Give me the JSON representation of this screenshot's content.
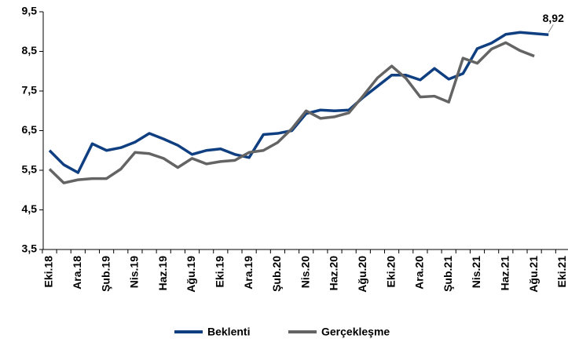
{
  "chart_data": {
    "type": "line",
    "categories": [
      "Eki.18",
      null,
      "Ara.18",
      null,
      "Şub.19",
      null,
      "Nis.19",
      null,
      "Haz.19",
      null,
      "Ağu.19",
      null,
      "Eki.19",
      null,
      "Ara.19",
      null,
      "Şub.20",
      null,
      "Nis.20",
      null,
      "Haz.20",
      null,
      "Ağu.20",
      null,
      "Eki.20",
      null,
      "Ara.20",
      null,
      "Şub.21",
      null,
      "Nis.21",
      null,
      "Haz.21",
      null,
      "Ağu.21",
      null,
      "Eki.21"
    ],
    "series": [
      {
        "name": "Beklenti",
        "color": "#0f3f80",
        "values": [
          6.0,
          5.64,
          5.44,
          6.17,
          6.0,
          6.07,
          6.21,
          6.43,
          6.29,
          6.13,
          5.9,
          6.0,
          6.04,
          5.9,
          5.82,
          6.4,
          6.43,
          6.5,
          6.93,
          7.02,
          7.0,
          7.02,
          7.34,
          7.62,
          7.9,
          7.9,
          7.78,
          8.07,
          7.8,
          7.94,
          8.57,
          8.71,
          8.93,
          8.98,
          8.95,
          8.92,
          null
        ],
        "value_labels": [
          null,
          null,
          null,
          null,
          null,
          null,
          null,
          null,
          null,
          null,
          null,
          null,
          null,
          null,
          null,
          null,
          null,
          null,
          null,
          null,
          null,
          null,
          null,
          null,
          null,
          null,
          null,
          null,
          null,
          null,
          null,
          null,
          null,
          null,
          null,
          "8,92",
          null
        ]
      },
      {
        "name": "Gerçekleşme",
        "color": "#646464",
        "values": [
          5.53,
          5.18,
          5.26,
          5.29,
          5.29,
          5.53,
          5.95,
          5.92,
          5.8,
          5.57,
          5.8,
          5.66,
          5.72,
          5.75,
          5.95,
          6.0,
          6.2,
          6.55,
          7.0,
          6.81,
          6.85,
          6.95,
          7.38,
          7.83,
          8.13,
          7.82,
          7.35,
          7.37,
          7.22,
          8.33,
          8.2,
          8.56,
          8.72,
          8.52,
          8.38,
          null,
          null
        ]
      }
    ],
    "ylim": [
      3.5,
      9.5
    ],
    "yticks": [
      {
        "value": 3.5,
        "label": "3,5"
      },
      {
        "value": 4.5,
        "label": "4,5"
      },
      {
        "value": 5.5,
        "label": "5,5"
      },
      {
        "value": 6.5,
        "label": "6,5"
      },
      {
        "value": 7.5,
        "label": "7,5"
      },
      {
        "value": 8.5,
        "label": "8,5"
      },
      {
        "value": 9.5,
        "label": "9,5"
      }
    ],
    "grid": false,
    "legend": "bottom"
  }
}
